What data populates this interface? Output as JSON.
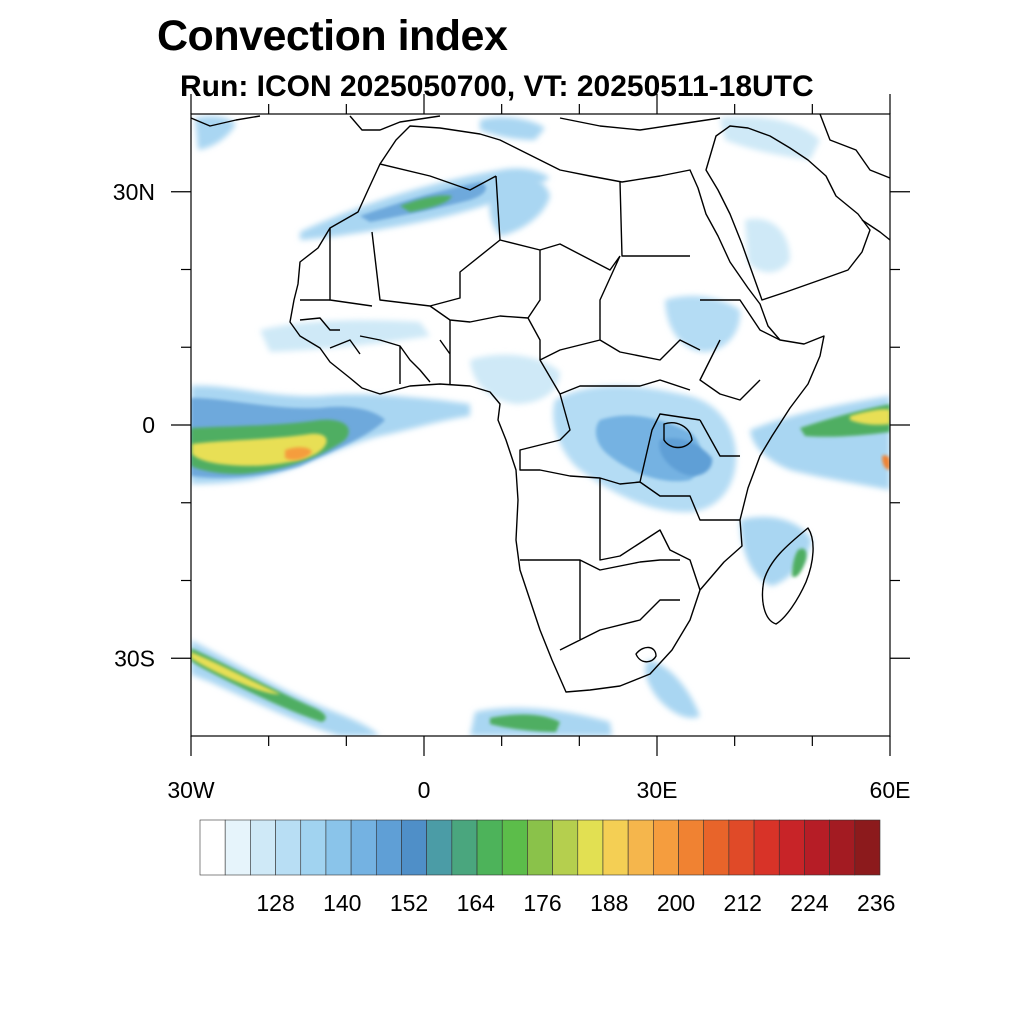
{
  "title": "Convection index",
  "subtitle": "Run: ICON 2025050700,  VT: 20250511-18UTC",
  "map": {
    "lon_range": [
      -30,
      60
    ],
    "lat_range": [
      -40,
      40
    ],
    "lat_ticks": [
      {
        "value": 30,
        "label": "30N"
      },
      {
        "value": 0,
        "label": "0"
      },
      {
        "value": -30,
        "label": "30S"
      }
    ],
    "lon_ticks": [
      {
        "value": -30,
        "label": "30W"
      },
      {
        "value": 0,
        "label": "0"
      },
      {
        "value": 30,
        "label": "30E"
      },
      {
        "value": 60,
        "label": "60E"
      }
    ],
    "minor_lon_ticks": [
      -20,
      -10,
      10,
      20,
      40,
      50
    ],
    "minor_lat_ticks": [
      20,
      10,
      -10,
      -20
    ]
  },
  "colorbar": {
    "colors": [
      "#ffffff",
      "#e6f4fb",
      "#cfe9f7",
      "#b8def4",
      "#a1d3f0",
      "#8ac4ea",
      "#74b2e2",
      "#5f9fd6",
      "#4f8fc8",
      "#4b9ca6",
      "#4aa67e",
      "#4db35a",
      "#5cbd4a",
      "#8ac24a",
      "#b5cf4e",
      "#e2e052",
      "#f4cf54",
      "#f5b64c",
      "#f59d3e",
      "#f08232",
      "#e8642a",
      "#e04a28",
      "#d83328",
      "#c82428",
      "#b61d26",
      "#a31b22",
      "#8c1a1c"
    ],
    "labels": [
      "128",
      "140",
      "152",
      "164",
      "176",
      "188",
      "200",
      "212",
      "224",
      "236"
    ]
  }
}
